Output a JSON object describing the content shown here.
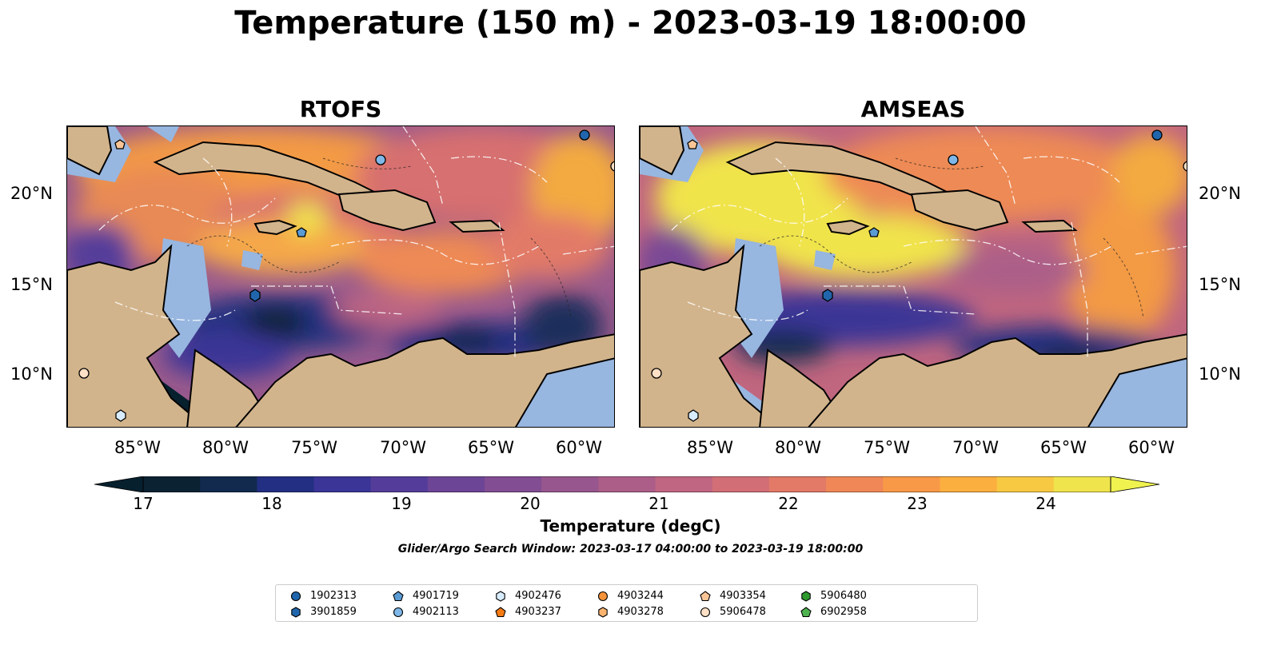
{
  "title": "Temperature (150 m) - 2023-03-19 18:00:00",
  "panels": [
    {
      "title": "RTOFS"
    },
    {
      "title": "AMSEAS"
    }
  ],
  "axes": {
    "lat_ticks": [
      "20°N",
      "15°N",
      "10°N"
    ],
    "lon_ticks": [
      "85°W",
      "80°W",
      "75°W",
      "70°W",
      "65°W",
      "60°W"
    ]
  },
  "colorbar": {
    "label": "Temperature (degC)",
    "ticks": [
      "17",
      "18",
      "19",
      "20",
      "21",
      "22",
      "23",
      "24"
    ],
    "range": [
      17,
      24.5
    ],
    "colors": [
      "#0b2232",
      "#112a4e",
      "#232f82",
      "#3a3596",
      "#543d9a",
      "#6d4597",
      "#824d92",
      "#97568d",
      "#ac5e88",
      "#c06682",
      "#d26f76",
      "#e27a67",
      "#ef8757",
      "#f89948",
      "#fbaf3f",
      "#f7c943",
      "#f0e44c"
    ],
    "min_color": "#06202e",
    "max_color": "#f0f250"
  },
  "search_window": "Glider/Argo Search Window: 2023-03-17 04:00:00 to 2023-03-19 18:00:00",
  "colors": {
    "land": "#d2b48c",
    "shallow_water": "#97b6e0",
    "contour": "#222222",
    "boundary": "#ffffff"
  },
  "legend": [
    {
      "id": "1902313",
      "marker": "circle",
      "color": "#2166ac"
    },
    {
      "id": "3901859",
      "marker": "hexagon",
      "color": "#2166ac"
    },
    {
      "id": "4901719",
      "marker": "pentagon",
      "color": "#5a9bd4"
    },
    {
      "id": "4902113",
      "marker": "circle",
      "color": "#7fb8e8"
    },
    {
      "id": "4902476",
      "marker": "hexagon",
      "color": "#d8ecff"
    },
    {
      "id": "4903237",
      "marker": "pentagon",
      "color": "#f57b14"
    },
    {
      "id": "4903244",
      "marker": "circle",
      "color": "#f5933a"
    },
    {
      "id": "4903278",
      "marker": "hexagon",
      "color": "#f9b36e"
    },
    {
      "id": "4903354",
      "marker": "pentagon",
      "color": "#fac596"
    },
    {
      "id": "5906478",
      "marker": "circle",
      "color": "#fde0c5"
    },
    {
      "id": "5906480",
      "marker": "hexagon",
      "color": "#2f9a2f"
    },
    {
      "id": "6902958",
      "marker": "pentagon",
      "color": "#4fb34f"
    }
  ]
}
